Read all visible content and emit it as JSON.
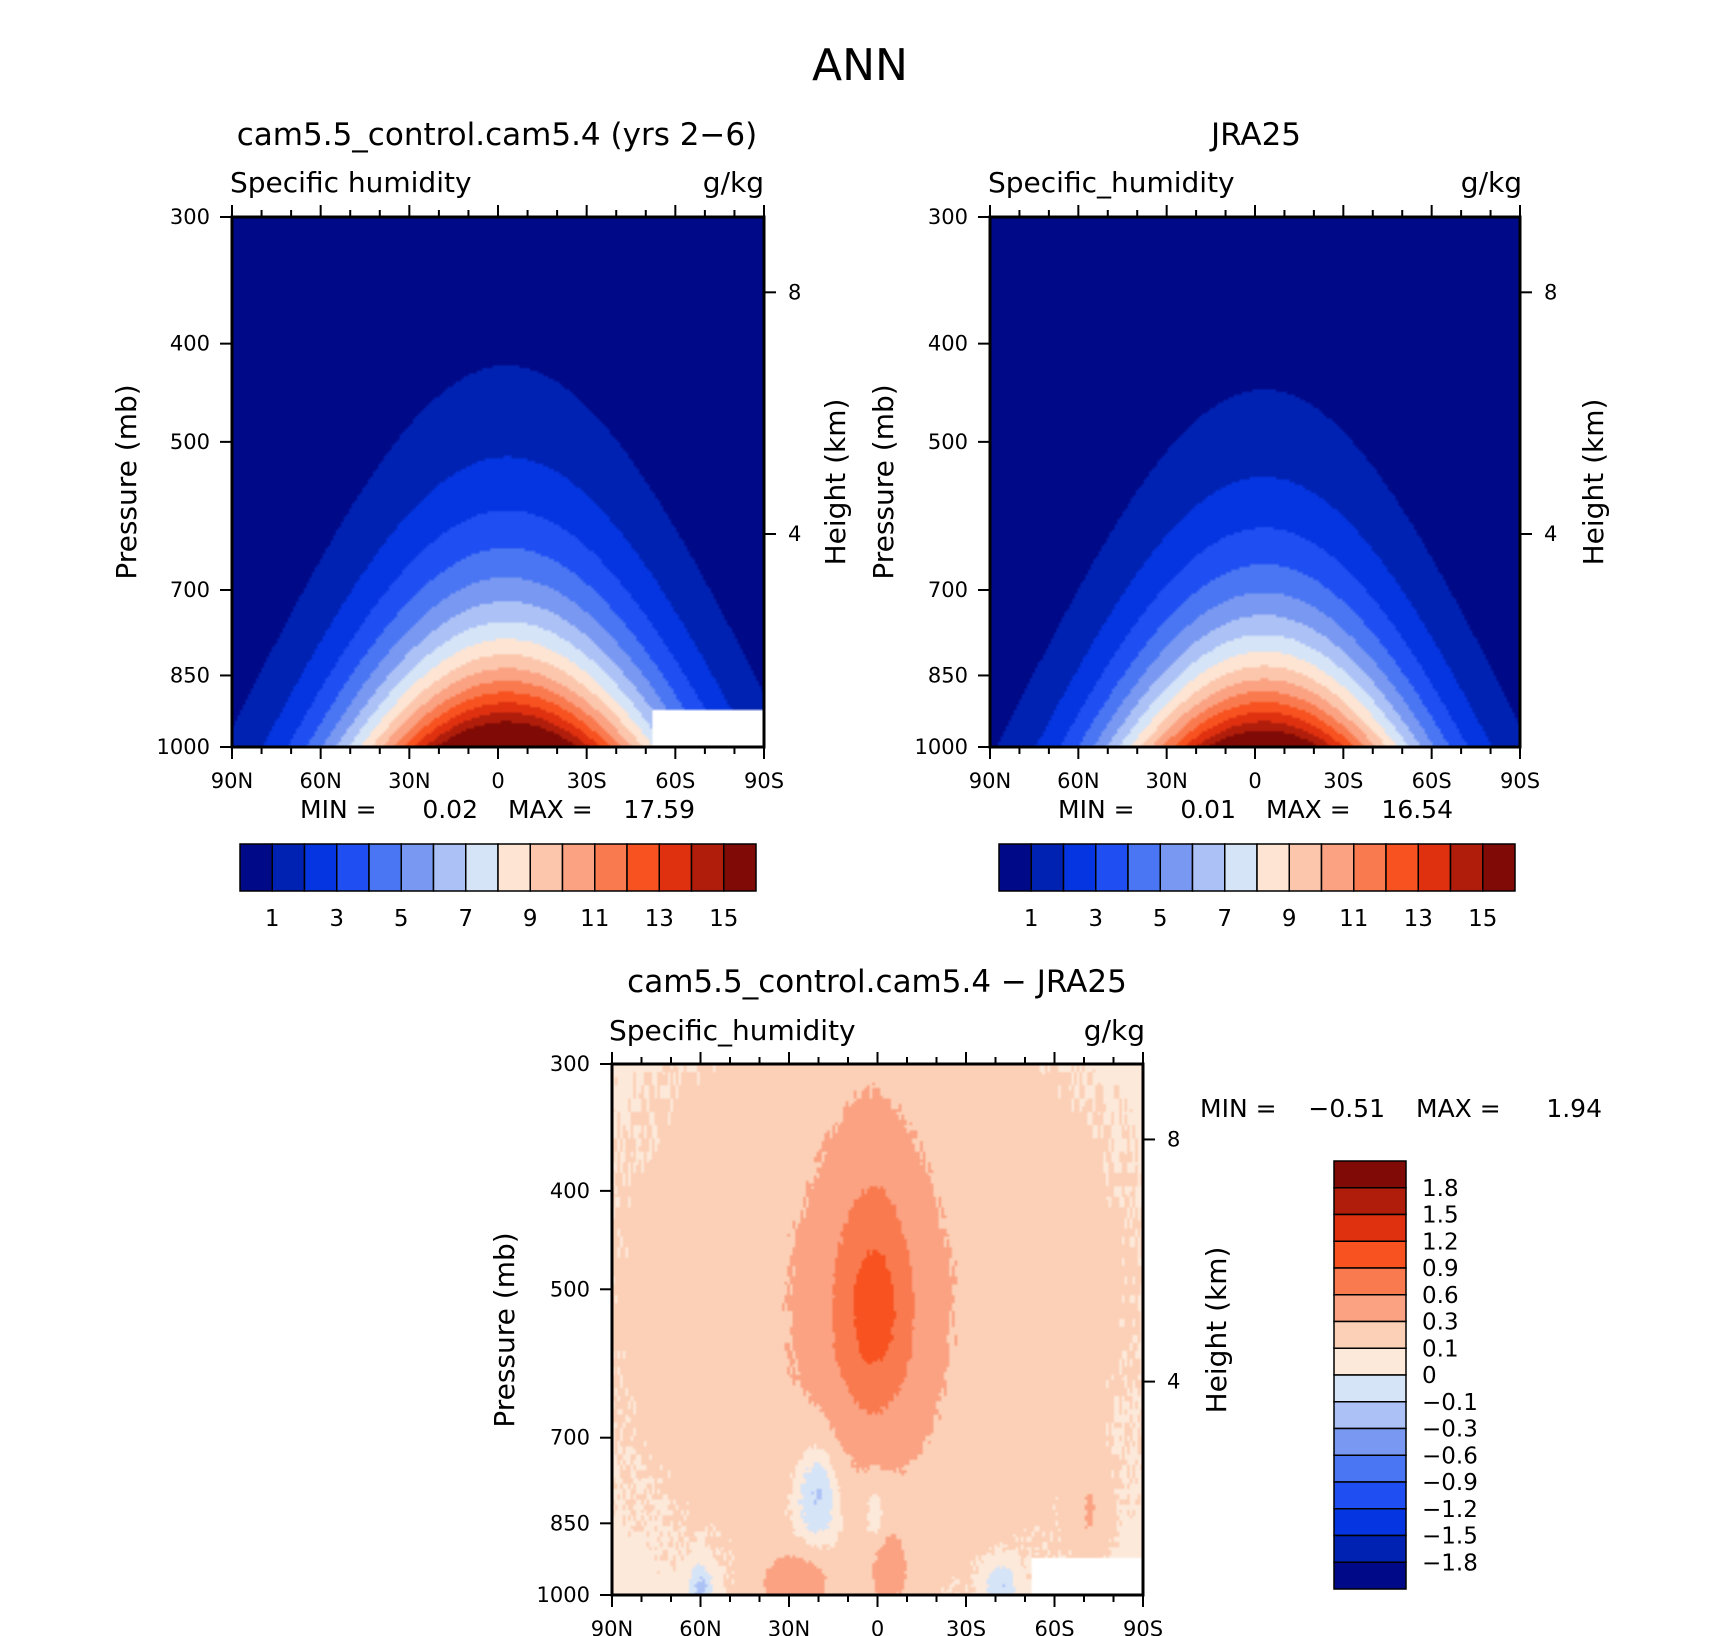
{
  "page": {
    "title": "ANN"
  },
  "colors": {
    "full": [
      "#000a88",
      "#0022b3",
      "#0535e0",
      "#1f4ff2",
      "#4a76f4",
      "#7998f2",
      "#acc2f6",
      "#d6e4f8",
      "#fde4d3",
      "#fcc6ac",
      "#fba283",
      "#fa7a4f",
      "#f7521f",
      "#df3010",
      "#b01e0b",
      "#800a05"
    ],
    "diff": [
      "#000a88",
      "#0022b3",
      "#0535e0",
      "#1f4ff2",
      "#4a76f4",
      "#7998f2",
      "#acc2f6",
      "#d6e4f8",
      "#fde9da",
      "#fcd0b6",
      "#fba283",
      "#fa7a4f",
      "#f7521f",
      "#df3010",
      "#b01e0b",
      "#800a05"
    ]
  },
  "chart_data": [
    {
      "type": "contour",
      "title": "cam5.5_control.cam5.4 (yrs 2−6)",
      "left_string": "Specific humidity",
      "right_string": "g/kg",
      "xlabel": "",
      "ylabel": "Pressure (mb)",
      "ylabel_right": "Height (km)",
      "x_ticks": [
        "90N",
        "60N",
        "30N",
        "0",
        "30S",
        "60S",
        "90S"
      ],
      "y_ticks": [
        "300",
        "400",
        "500",
        "700",
        "850",
        "1000"
      ],
      "y_right_ticks": [
        "8",
        "4"
      ],
      "xlim": [
        90,
        -90
      ],
      "ylim": [
        1000,
        300
      ],
      "yscale": "log",
      "min_label": "MIN =",
      "min_value": "0.02",
      "max_label": "MAX =",
      "max_value": "17.59",
      "levels": [
        1,
        2,
        3,
        4,
        5,
        6,
        7,
        8,
        9,
        10,
        11,
        12,
        13,
        14,
        15
      ],
      "colorbar_labels": [
        "1",
        "3",
        "5",
        "7",
        "9",
        "11",
        "13",
        "15"
      ],
      "field": {
        "peak": 17.59,
        "peak_lat": -3,
        "scale_height_km": 2.2,
        "lat_width": 38,
        "missing_region": {
          "lat_from": -52,
          "p_from": 920
        }
      }
    },
    {
      "type": "contour",
      "title": "JRA25",
      "left_string": "Specific_humidity",
      "right_string": "g/kg",
      "xlabel": "",
      "ylabel": "Pressure (mb)",
      "ylabel_right": "Height (km)",
      "x_ticks": [
        "90N",
        "60N",
        "30N",
        "0",
        "30S",
        "60S",
        "90S"
      ],
      "y_ticks": [
        "300",
        "400",
        "500",
        "700",
        "850",
        "1000"
      ],
      "y_right_ticks": [
        "8",
        "4"
      ],
      "xlim": [
        90,
        -90
      ],
      "ylim": [
        1000,
        300
      ],
      "yscale": "log",
      "min_label": "MIN =",
      "min_value": "0.01",
      "max_label": "MAX =",
      "max_value": "16.54",
      "levels": [
        1,
        2,
        3,
        4,
        5,
        6,
        7,
        8,
        9,
        10,
        11,
        12,
        13,
        14,
        15
      ],
      "colorbar_labels": [
        "1",
        "3",
        "5",
        "7",
        "9",
        "11",
        "13",
        "15"
      ],
      "field": {
        "peak": 16.54,
        "peak_lat": -3,
        "scale_height_km": 2.1,
        "lat_width": 36
      }
    },
    {
      "type": "contour",
      "title": "cam5.5_control.cam5.4 − JRA25",
      "left_string": "Specific_humidity",
      "right_string": "g/kg",
      "xlabel": "",
      "ylabel": "Pressure (mb)",
      "ylabel_right": "Height (km)",
      "x_ticks": [
        "90N",
        "60N",
        "30N",
        "0",
        "30S",
        "60S",
        "90S"
      ],
      "y_ticks": [
        "300",
        "400",
        "500",
        "700",
        "850",
        "1000"
      ],
      "y_right_ticks": [
        "8",
        "4"
      ],
      "xlim": [
        90,
        -90
      ],
      "ylim": [
        1000,
        300
      ],
      "yscale": "log",
      "min_label": "MIN =",
      "min_value": "−0.51",
      "max_label": "MAX =",
      "max_value": "1.94",
      "levels": [
        -1.8,
        -1.5,
        -1.2,
        -0.9,
        -0.6,
        -0.3,
        -0.1,
        0,
        0.1,
        0.3,
        0.6,
        0.9,
        1.2,
        1.5,
        1.8
      ],
      "colorbar_labels": [
        "1.8",
        "1.5",
        "1.2",
        "0.9",
        "0.6",
        "0.3",
        "0.1",
        "0",
        "−0.1",
        "−0.3",
        "−0.6",
        "−0.9",
        "−1.2",
        "−1.5",
        "−1.8"
      ],
      "field": {
        "missing_region": {
          "lat_from": -52,
          "p_from": 920
        }
      }
    }
  ]
}
